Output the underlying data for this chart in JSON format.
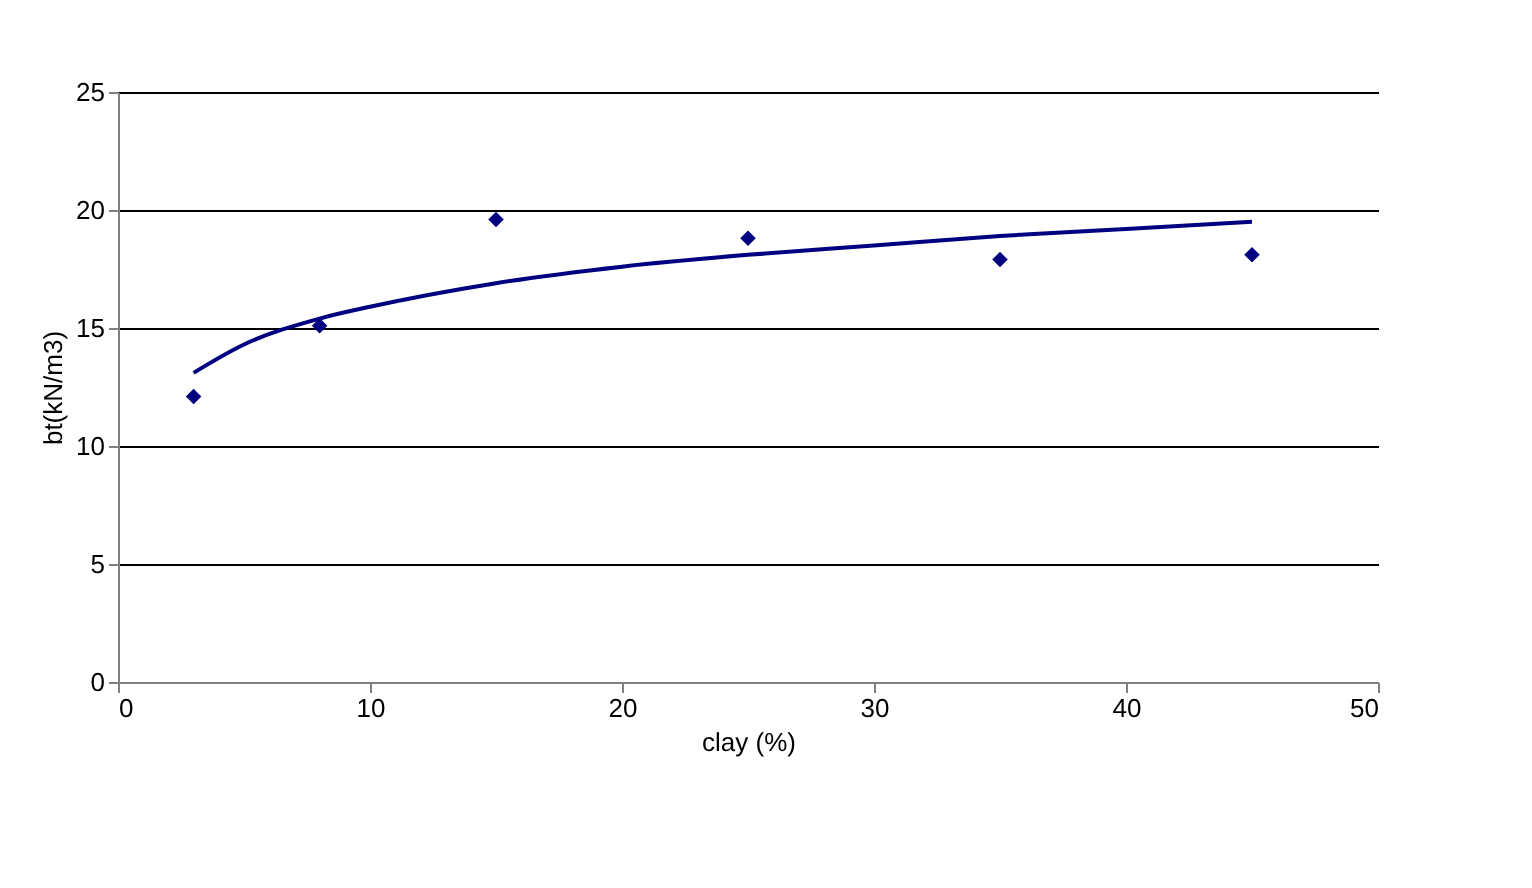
{
  "chart_data": {
    "type": "scatter",
    "xlabel": "clay (%)",
    "ylabel": "bt(kN/m3)",
    "series": [
      {
        "color": "#000080",
        "marker": "diamond",
        "x": [
          3,
          8,
          15,
          25,
          35,
          45
        ],
        "values": [
          12.1,
          15.1,
          19.6,
          18.8,
          17.9,
          18.1
        ]
      },
      {
        "type": "line",
        "color": "#000080",
        "x": [
          3,
          5,
          8,
          10,
          15,
          20,
          25,
          30,
          35,
          40,
          45
        ],
        "values": [
          13.1,
          14.3,
          15.4,
          15.9,
          16.9,
          17.6,
          18.1,
          18.5,
          18.9,
          19.2,
          19.5
        ]
      }
    ],
    "xlim": [
      0,
      50
    ],
    "xticks": [
      0,
      10,
      20,
      30,
      40,
      50
    ],
    "ylim": [
      0,
      25
    ],
    "yticks": [
      0,
      5,
      10,
      15,
      20,
      25
    ],
    "grid": "y"
  }
}
